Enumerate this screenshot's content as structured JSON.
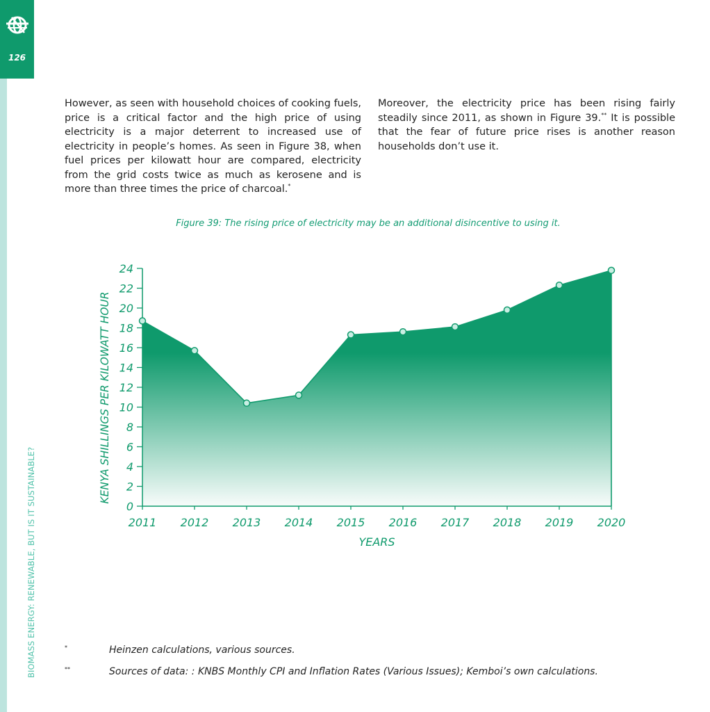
{
  "header": {
    "page_number": "126"
  },
  "sidebar": {
    "running_title": "BIOMASS ENERGY: RENEWABLE, BUT IS IT SUSTAINABLE?"
  },
  "body": {
    "left_text": "However, as seen with household choices of cooking fuels, price is a critical factor and the high price of using electricity is a major deterrent to increased use of electricity in people’s homes.  As seen in Figure 38, when fuel prices per kilowatt hour are compared, electricity from the grid costs twice as much as kerosene and is more than three times the price of charcoal.",
    "left_mark": "*",
    "right_text_a": "Moreover, the electricity price has been rising fairly steadily since 2011, as shown in Figure 39.",
    "right_mark": "**",
    "right_text_b": "  It is possible that the fear of future price rises is another reason households don’t use it."
  },
  "figure": {
    "caption": "Figure 39: The rising price of electricity may be an additional disincentive to using it."
  },
  "chart_data": {
    "type": "area",
    "x": [
      "2011",
      "2012",
      "2013",
      "2014",
      "2015",
      "2016",
      "2017",
      "2018",
      "2019",
      "2020"
    ],
    "values": [
      18.7,
      15.7,
      10.4,
      11.2,
      17.3,
      17.6,
      18.1,
      19.8,
      22.3,
      23.8
    ],
    "xlabel": "YEARS",
    "ylabel": "KENYA SHILLINGS PER KILOWATT HOUR",
    "yticks": [
      "0",
      "2",
      "4",
      "6",
      "8",
      "10",
      "12",
      "14",
      "16",
      "18",
      "20",
      "22",
      "24"
    ],
    "ylim": [
      0,
      24
    ],
    "grid": false,
    "color": "#0f9a6c"
  },
  "footnotes": [
    {
      "mark": "*",
      "text": "Heinzen calculations, various sources."
    },
    {
      "mark": "**",
      "text": "Sources of data: : KNBS Monthly CPI and Inflation Rates (Various Issues); Kemboi’s own calculations."
    }
  ]
}
